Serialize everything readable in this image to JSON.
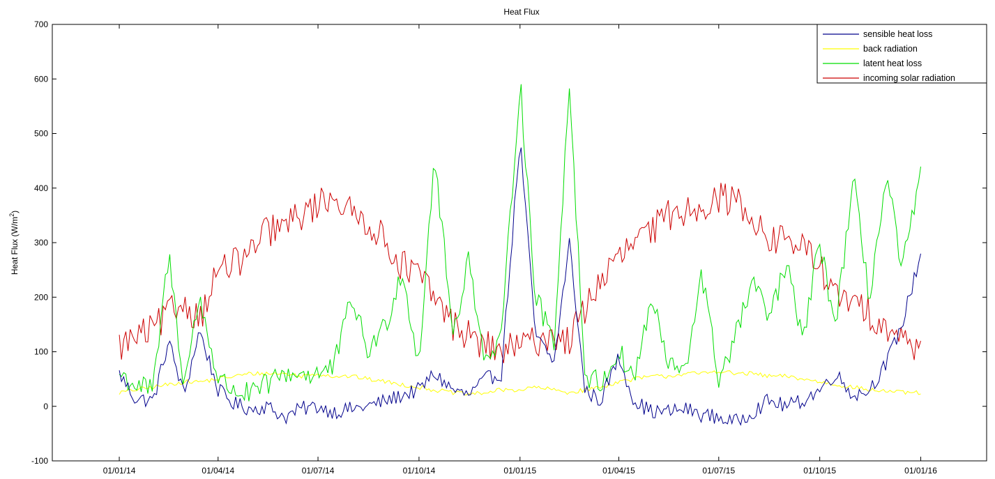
{
  "chart_data": {
    "type": "line",
    "title": "Heat Flux",
    "xlabel": "",
    "ylabel": "Heat Flux (W/m²)",
    "ylabel_parts": {
      "main": "Heat Flux (W/m",
      "sup": "2",
      "close": ")"
    },
    "x_tick_labels": [
      "01/01/14",
      "01/04/14",
      "01/07/14",
      "01/10/14",
      "01/01/15",
      "01/04/15",
      "01/07/15",
      "01/10/15",
      "01/01/16"
    ],
    "xlim": [
      "2013-11-01",
      "2016-03-01"
    ],
    "ylim": [
      -100,
      700
    ],
    "y_ticks": [
      -100,
      0,
      100,
      200,
      300,
      400,
      500,
      600,
      700
    ],
    "grid": false,
    "legend_position": "top-right",
    "x": [
      "2014-01-01",
      "2014-01-15",
      "2014-02-01",
      "2014-02-15",
      "2014-03-01",
      "2014-03-15",
      "2014-04-01",
      "2014-04-15",
      "2014-05-01",
      "2014-05-15",
      "2014-06-01",
      "2014-06-15",
      "2014-07-01",
      "2014-07-15",
      "2014-08-01",
      "2014-08-15",
      "2014-09-01",
      "2014-09-15",
      "2014-10-01",
      "2014-10-15",
      "2014-11-01",
      "2014-11-15",
      "2014-12-01",
      "2014-12-15",
      "2015-01-01",
      "2015-01-15",
      "2015-02-01",
      "2015-02-15",
      "2015-03-01",
      "2015-03-15",
      "2015-04-01",
      "2015-04-15",
      "2015-05-01",
      "2015-05-15",
      "2015-06-01",
      "2015-06-15",
      "2015-07-01",
      "2015-07-15",
      "2015-08-01",
      "2015-08-15",
      "2015-09-01",
      "2015-09-15",
      "2015-10-01",
      "2015-10-15",
      "2015-11-01",
      "2015-11-15",
      "2015-12-01",
      "2015-12-15",
      "2016-01-01"
    ],
    "series": [
      {
        "name": "sensible heat loss",
        "color": "#00008b",
        "values": [
          60,
          15,
          10,
          120,
          20,
          140,
          30,
          5,
          -5,
          0,
          -20,
          -5,
          0,
          -10,
          -5,
          0,
          10,
          20,
          30,
          60,
          30,
          20,
          50,
          60,
          490,
          130,
          80,
          300,
          30,
          10,
          90,
          10,
          -10,
          -10,
          -5,
          -15,
          -20,
          -30,
          -10,
          10,
          0,
          10,
          30,
          60,
          20,
          30,
          80,
          150,
          280
        ]
      },
      {
        "name": "back radiation",
        "color": "#ffff00",
        "values": [
          25,
          30,
          35,
          40,
          45,
          45,
          50,
          55,
          60,
          60,
          60,
          55,
          60,
          55,
          55,
          50,
          45,
          40,
          35,
          30,
          25,
          22,
          25,
          30,
          30,
          35,
          30,
          25,
          30,
          35,
          45,
          50,
          55,
          55,
          60,
          60,
          65,
          60,
          60,
          55,
          55,
          50,
          45,
          40,
          35,
          30,
          28,
          25,
          25
        ]
      },
      {
        "name": "latent heat loss",
        "color": "#00dd00",
        "values": [
          60,
          40,
          30,
          280,
          40,
          200,
          50,
          30,
          20,
          40,
          60,
          60,
          60,
          70,
          200,
          100,
          150,
          250,
          80,
          460,
          130,
          270,
          80,
          120,
          600,
          200,
          120,
          590,
          60,
          40,
          100,
          50,
          200,
          80,
          60,
          250,
          50,
          120,
          230,
          160,
          260,
          120,
          300,
          150,
          410,
          200,
          420,
          250,
          420
        ]
      },
      {
        "name": "incoming solar radiation",
        "color": "#cc0000",
        "values": [
          110,
          125,
          140,
          170,
          190,
          160,
          250,
          260,
          280,
          320,
          330,
          350,
          370,
          390,
          350,
          340,
          300,
          260,
          240,
          200,
          150,
          130,
          110,
          100,
          110,
          120,
          130,
          120,
          180,
          230,
          270,
          300,
          320,
          350,
          360,
          370,
          380,
          380,
          350,
          300,
          310,
          290,
          260,
          200,
          190,
          170,
          150,
          120,
          110
        ]
      }
    ]
  }
}
